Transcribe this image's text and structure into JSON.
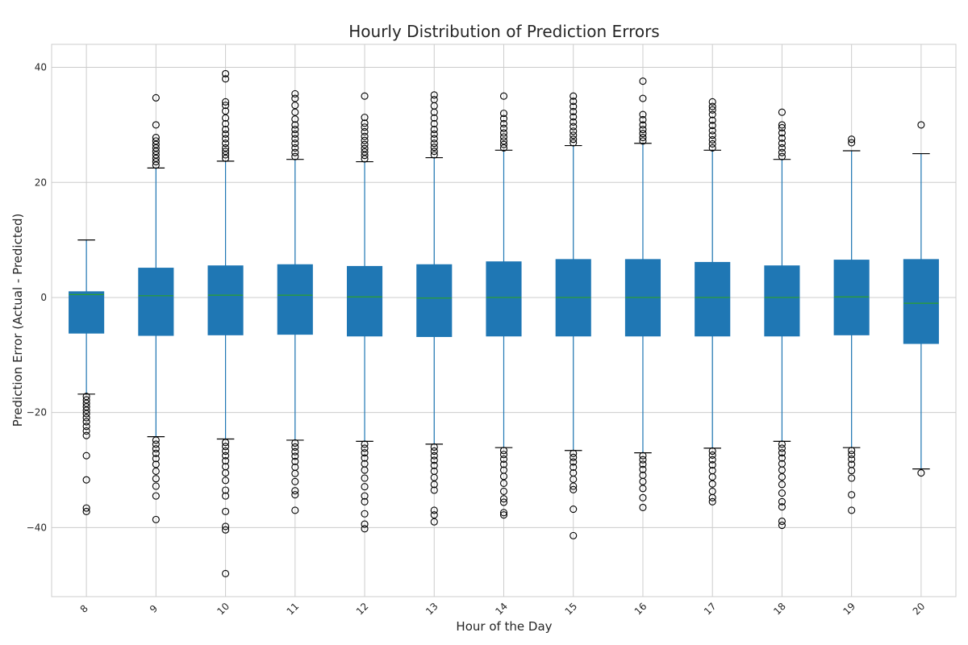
{
  "chart_data": {
    "type": "box",
    "title": "Hourly Distribution of Prediction Errors",
    "xlabel": "Hour of the Day",
    "ylabel": "Prediction Error (Actual - Predicted)",
    "ylim": [
      -52,
      44
    ],
    "yticks": [
      40,
      20,
      0,
      -20,
      -40
    ],
    "yticks_labels": [
      "40",
      "20",
      "0",
      "−20",
      "−40"
    ],
    "grid": true,
    "colors": {
      "box": "#1f77b4",
      "median": "#2ca02c",
      "whisker": "#1f77b4",
      "cap": "#000000",
      "flier": "#000000",
      "grid": "#cccccc",
      "frame": "#cccccc"
    },
    "categories": [
      "8",
      "9",
      "10",
      "11",
      "12",
      "13",
      "14",
      "15",
      "16",
      "17",
      "18",
      "19",
      "20"
    ],
    "boxes": [
      {
        "hour": "8",
        "whislo": -16.8,
        "q1": -6.2,
        "median": 0.5,
        "q3": 1.0,
        "whishi": 10.0,
        "fliers": [
          -17.2,
          -17.8,
          -18.4,
          -19.0,
          -19.6,
          -20.2,
          -20.9,
          -21.6,
          -22.4,
          -23.2,
          -24.0,
          -27.5,
          -31.7,
          -36.6,
          -37.2
        ]
      },
      {
        "hour": "9",
        "whislo": -24.2,
        "q1": -6.6,
        "median": 0.3,
        "q3": 5.1,
        "whishi": 22.5,
        "fliers": [
          23.0,
          23.6,
          24.2,
          24.8,
          25.4,
          26.0,
          26.6,
          27.2,
          27.8,
          30.0,
          34.7,
          -24.8,
          -25.5,
          -26.3,
          -27.1,
          -28.0,
          -29.0,
          -30.2,
          -31.5,
          -32.8,
          -34.5,
          -38.6
        ]
      },
      {
        "hour": "10",
        "whislo": -24.6,
        "q1": -6.5,
        "median": 0.4,
        "q3": 5.5,
        "whishi": 23.7,
        "fliers": [
          24.2,
          24.8,
          25.4,
          26.0,
          26.8,
          27.6,
          28.4,
          29.2,
          30.2,
          31.2,
          32.4,
          33.4,
          34.0,
          38.0,
          38.9,
          -25.2,
          -25.9,
          -26.7,
          -27.5,
          -28.4,
          -29.4,
          -30.5,
          -31.8,
          -33.5,
          -34.5,
          -37.2,
          -39.8,
          -40.4,
          -48.0
        ]
      },
      {
        "hour": "11",
        "whislo": -24.8,
        "q1": -6.4,
        "median": 0.4,
        "q3": 5.7,
        "whishi": 24.0,
        "fliers": [
          24.5,
          25.2,
          26.0,
          26.8,
          27.6,
          28.4,
          29.2,
          30.0,
          31.0,
          32.2,
          33.4,
          34.6,
          35.4,
          -25.3,
          -26.0,
          -26.8,
          -27.6,
          -28.5,
          -29.5,
          -30.6,
          -32.0,
          -33.6,
          -34.3,
          -37.0
        ]
      },
      {
        "hour": "12",
        "whislo": -25.0,
        "q1": -6.7,
        "median": 0.1,
        "q3": 5.4,
        "whishi": 23.6,
        "fliers": [
          24.1,
          24.7,
          25.3,
          25.9,
          26.6,
          27.3,
          28.0,
          28.8,
          29.6,
          30.3,
          31.3,
          35.0,
          -25.5,
          -26.2,
          -27.0,
          -27.9,
          -28.9,
          -30.0,
          -31.4,
          -32.9,
          -34.5,
          -35.5,
          -37.6,
          -39.4,
          -40.2
        ]
      },
      {
        "hour": "13",
        "whislo": -25.5,
        "q1": -6.8,
        "median": -0.1,
        "q3": 5.7,
        "whishi": 24.3,
        "fliers": [
          24.8,
          25.4,
          26.1,
          26.8,
          27.6,
          28.4,
          29.2,
          30.2,
          31.2,
          32.2,
          33.3,
          34.4,
          35.2,
          -26.0,
          -26.7,
          -27.5,
          -28.3,
          -29.2,
          -30.2,
          -31.3,
          -32.5,
          -33.5,
          -37.0,
          -37.8,
          -39.0
        ]
      },
      {
        "hour": "14",
        "whislo": -26.1,
        "q1": -6.7,
        "median": 0.0,
        "q3": 6.2,
        "whishi": 25.6,
        "fliers": [
          26.0,
          26.6,
          27.2,
          27.9,
          28.6,
          29.4,
          30.2,
          31.1,
          32.0,
          35.0,
          -26.6,
          -27.3,
          -28.1,
          -29.0,
          -30.0,
          -31.1,
          -32.3,
          -33.7,
          -35.0,
          -35.6,
          -37.4,
          -37.8
        ]
      },
      {
        "hour": "15",
        "whislo": -26.6,
        "q1": -6.7,
        "median": 0.0,
        "q3": 6.6,
        "whishi": 26.4,
        "fliers": [
          26.9,
          27.5,
          28.2,
          28.9,
          29.7,
          30.5,
          31.4,
          32.3,
          33.2,
          34.1,
          35.0,
          -27.1,
          -27.8,
          -28.6,
          -29.5,
          -30.5,
          -31.6,
          -32.8,
          -33.4,
          -36.8,
          -41.4
        ]
      },
      {
        "hour": "16",
        "whislo": -27.0,
        "q1": -6.7,
        "median": 0.0,
        "q3": 6.6,
        "whishi": 26.8,
        "fliers": [
          27.2,
          27.8,
          28.5,
          29.2,
          30.0,
          30.9,
          31.8,
          34.6,
          37.6,
          -27.5,
          -28.2,
          -29.0,
          -29.9,
          -30.9,
          -32.0,
          -33.2,
          -34.8,
          -36.5
        ]
      },
      {
        "hour": "17",
        "whislo": -26.2,
        "q1": -6.7,
        "median": 0.0,
        "q3": 6.1,
        "whishi": 25.6,
        "fliers": [
          26.0,
          26.7,
          27.4,
          28.2,
          29.0,
          29.9,
          30.8,
          31.8,
          32.6,
          33.2,
          34.0,
          -26.7,
          -27.4,
          -28.2,
          -29.1,
          -30.1,
          -31.2,
          -32.4,
          -33.7,
          -34.8,
          -35.5
        ]
      },
      {
        "hour": "18",
        "whislo": -25.0,
        "q1": -6.7,
        "median": 0.0,
        "q3": 5.5,
        "whishi": 24.0,
        "fliers": [
          24.5,
          25.2,
          26.0,
          26.8,
          27.7,
          28.6,
          29.5,
          30.0,
          32.2,
          -25.5,
          -26.2,
          -27.0,
          -27.9,
          -28.9,
          -30.0,
          -31.2,
          -32.5,
          -34.0,
          -35.5,
          -36.4,
          -38.9,
          -39.6
        ]
      },
      {
        "hour": "19",
        "whislo": -26.1,
        "q1": -6.5,
        "median": 0.1,
        "q3": 6.5,
        "whishi": 25.5,
        "fliers": [
          26.9,
          27.5,
          -26.6,
          -27.3,
          -28.1,
          -29.0,
          -30.1,
          -31.4,
          -34.3,
          -37.0
        ]
      },
      {
        "hour": "20",
        "whislo": -29.8,
        "q1": -8.0,
        "median": -1.0,
        "q3": 6.6,
        "whishi": 25.0,
        "fliers": [
          30.0,
          -30.5
        ]
      }
    ]
  }
}
